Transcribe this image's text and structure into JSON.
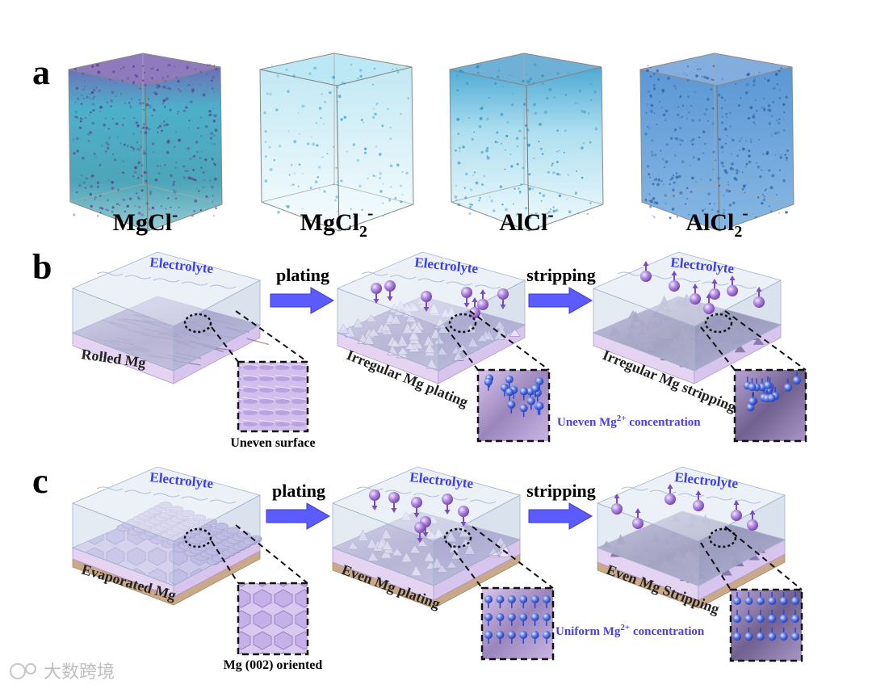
{
  "panel_a": {
    "letter": "a",
    "cubes": [
      {
        "base": "MgCl",
        "sub": "",
        "sup": "-"
      },
      {
        "base": "MgCl",
        "sub": "2",
        "sup": "-"
      },
      {
        "base": "AlCl",
        "sub": "",
        "sup": "-"
      },
      {
        "base": "AlCl",
        "sub": "2",
        "sup": "-"
      }
    ]
  },
  "panel_b": {
    "letter": "b",
    "electrolyte": "Electrolyte",
    "arrow1": "plating",
    "arrow2": "stripping",
    "block1": "Rolled Mg",
    "block2": "Irregular Mg plating",
    "block3": "Irregular Mg stripping",
    "inset1": "Uneven surface",
    "concentration_pre": "Uneven Mg",
    "concentration_sup": "2+",
    "concentration_post": " concentration"
  },
  "panel_c": {
    "letter": "c",
    "electrolyte": "Electrolyte",
    "arrow1": "plating",
    "arrow2": "stripping",
    "block1": "Evaporated Mg",
    "block2": "Even Mg plating",
    "block3": "Even Mg Stripping",
    "inset1": "Mg (002) oriented",
    "concentration_pre": "Uniform Mg",
    "concentration_sup": "2+",
    "concentration_post": " concentration"
  },
  "watermark": "大数跨境",
  "colors": {
    "arrow": "#5b5bff",
    "electrolyte_text": "#3c3cf0",
    "concentration_text": "#4a3ee8",
    "ion": "#8a5ccc",
    "block_top": "#c8b8e6",
    "block_side": "#d8c8ec",
    "substrate": "#c9a98a"
  }
}
